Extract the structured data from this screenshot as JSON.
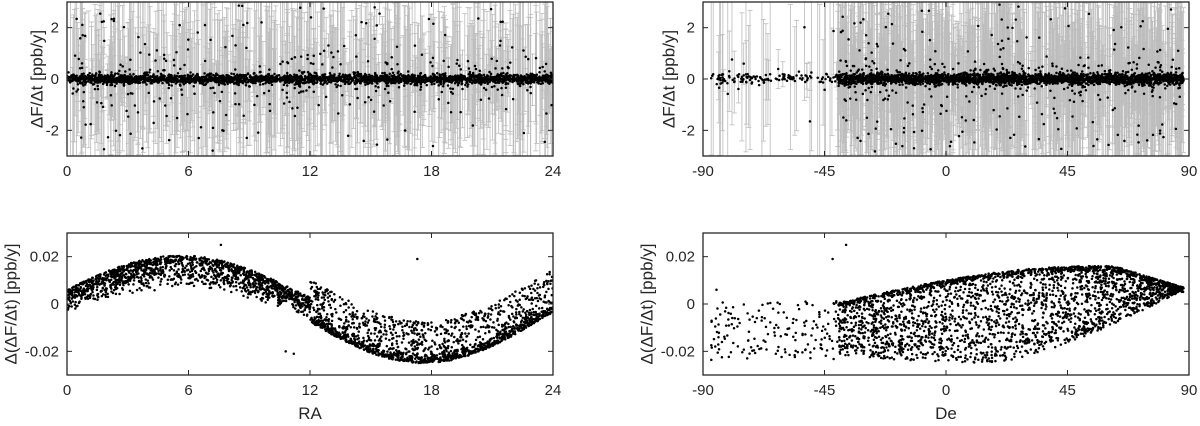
{
  "chart_data": [
    {
      "id": "top-left",
      "type": "scatter",
      "error_bars": true,
      "x_pattern": "ra",
      "xlabel": "",
      "ylabel": "ΔF/Δt [ppb/y]",
      "xlim": [
        0,
        24
      ],
      "ylim": [
        -3,
        3
      ],
      "xticks": [
        0,
        6,
        12,
        18,
        24
      ],
      "xtick_labels": [
        "0",
        "6",
        "12",
        "18",
        "24"
      ],
      "yticks": [
        -2,
        0,
        2
      ],
      "ytick_labels": [
        "-2",
        "0",
        "2"
      ],
      "n_points_approx": 3000,
      "marker_color": "#000000",
      "errorbar_color": "#bdbdbd",
      "grid": false
    },
    {
      "id": "top-right",
      "type": "scatter",
      "error_bars": true,
      "x_pattern": "de",
      "xlabel": "",
      "ylabel": "ΔF/Δt [ppb/y]",
      "xlim": [
        -90,
        90
      ],
      "ylim": [
        -3,
        3
      ],
      "xticks": [
        -90,
        -45,
        0,
        45,
        90
      ],
      "xtick_labels": [
        "-90",
        "-45",
        "0",
        "45",
        "90"
      ],
      "yticks": [
        -2,
        0,
        2
      ],
      "ytick_labels": [
        "-2",
        "0",
        "2"
      ],
      "n_points_approx": 3000,
      "marker_color": "#000000",
      "errorbar_color": "#bdbdbd",
      "grid": false
    },
    {
      "id": "bottom-left",
      "type": "scatter",
      "x_pattern": "ra-sine",
      "xlabel": "RA",
      "ylabel": "Δ(ΔF/Δt) [ppb/y]",
      "xlim": [
        0,
        24
      ],
      "ylim": [
        -0.03,
        0.03
      ],
      "xticks": [
        0,
        6,
        12,
        18,
        24
      ],
      "xtick_labels": [
        "0",
        "6",
        "12",
        "18",
        "24"
      ],
      "yticks": [
        -0.02,
        0,
        0.02
      ],
      "ytick_labels": [
        "-0.02",
        "0",
        "0.02"
      ],
      "envelope": {
        "amplitude": 0.02,
        "peak_ra": 5.6,
        "trough_ra": 17.6
      },
      "outliers": [
        [
          7.6,
          0.025
        ],
        [
          17.3,
          0.019
        ],
        [
          11.2,
          -0.021
        ],
        [
          10.8,
          -0.02
        ]
      ],
      "n_points_approx": 3000,
      "marker_color": "#000000",
      "grid": false
    },
    {
      "id": "bottom-right",
      "type": "scatter",
      "x_pattern": "de-fan",
      "xlabel": "De",
      "ylabel": "Δ(ΔF/Δt) [ppb/y]",
      "xlim": [
        -90,
        90
      ],
      "ylim": [
        -0.03,
        0.03
      ],
      "xticks": [
        -90,
        -45,
        0,
        45,
        90
      ],
      "xtick_labels": [
        "-90",
        "-45",
        "0",
        "45",
        "90"
      ],
      "yticks": [
        -0.02,
        0,
        0.02
      ],
      "ytick_labels": [
        "-0.02",
        "0",
        "0.02"
      ],
      "envelope": {
        "upper_max": 0.016,
        "lower_min": -0.025,
        "converge_de": 88
      },
      "outliers": [
        [
          -37,
          0.025
        ],
        [
          -42,
          0.019
        ],
        [
          -85,
          0.006
        ]
      ],
      "n_points_approx": 3000,
      "marker_color": "#000000",
      "grid": false
    }
  ]
}
